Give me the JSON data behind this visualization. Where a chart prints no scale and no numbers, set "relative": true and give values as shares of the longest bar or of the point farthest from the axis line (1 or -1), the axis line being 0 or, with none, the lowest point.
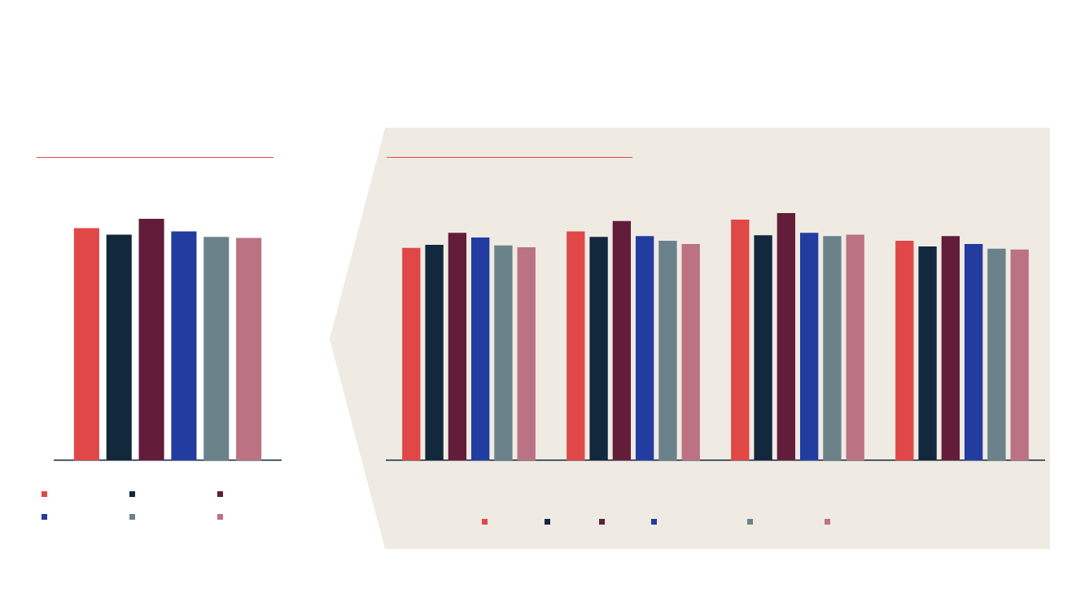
{
  "chart_data": [
    {
      "type": "bar",
      "relative": true,
      "categories": [
        null
      ],
      "series": [
        {
          "color": "#e04848",
          "values": [
            0.961
          ]
        },
        {
          "color": "#12283c",
          "values": [
            0.934
          ]
        },
        {
          "color": "#631d3b",
          "values": [
            1
          ]
        },
        {
          "color": "#233ca0",
          "values": [
            0.948
          ]
        },
        {
          "color": "#6b828b",
          "values": [
            0.925
          ]
        },
        {
          "color": "#bb7384",
          "values": [
            0.921
          ]
        }
      ]
    },
    {
      "type": "bar",
      "relative": true,
      "categories": [
        null,
        null,
        null,
        null
      ],
      "series": [
        {
          "color": "#e04848",
          "values": [
            0.859,
            0.926,
            0.974,
            0.888
          ]
        },
        {
          "color": "#12283c",
          "values": [
            0.872,
            0.904,
            0.91,
            0.865
          ]
        },
        {
          "color": "#631d3b",
          "values": [
            0.92,
            0.968,
            1,
            0.907
          ]
        },
        {
          "color": "#233ca0",
          "values": [
            0.901,
            0.907,
            0.92,
            0.875
          ]
        },
        {
          "color": "#6b828b",
          "values": [
            0.869,
            0.888,
            0.907,
            0.856
          ]
        },
        {
          "color": "#bb7384",
          "values": [
            0.862,
            0.875,
            0.913,
            0.853
          ]
        }
      ]
    }
  ]
}
